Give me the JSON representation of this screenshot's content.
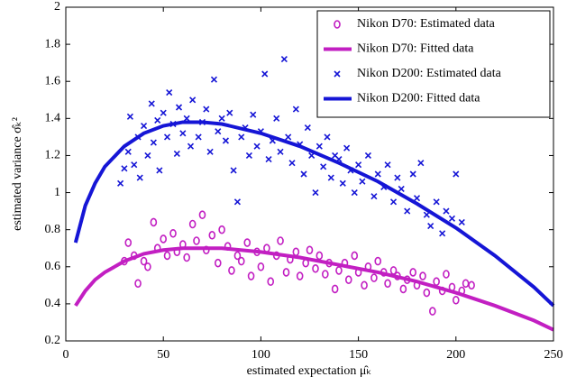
{
  "chart_data": {
    "type": "scatter",
    "x_label": "estimated expectation μ̂ₖ",
    "y_label": "estimated variance σ̂ₖ²",
    "xlim": [
      0,
      250
    ],
    "xticks": [
      0,
      50,
      100,
      150,
      200,
      250
    ],
    "ylim": [
      0.2,
      2
    ],
    "yticks": [
      0.2,
      0.4,
      0.6,
      0.8,
      1,
      1.2,
      1.4,
      1.6,
      1.8,
      2
    ],
    "grid": false,
    "legend": "top-right",
    "series": [
      {
        "name": "Nikon D70: Estimated data",
        "color": "#c21fc2",
        "mode": "markers",
        "marker": "o",
        "x": [
          30,
          32,
          35,
          37,
          40,
          42,
          45,
          47,
          50,
          52,
          55,
          57,
          60,
          62,
          65,
          67,
          70,
          72,
          75,
          78,
          80,
          83,
          85,
          88,
          90,
          93,
          95,
          98,
          100,
          103,
          105,
          108,
          110,
          113,
          115,
          118,
          120,
          123,
          125,
          128,
          130,
          133,
          135,
          138,
          140,
          143,
          145,
          148,
          150,
          153,
          155,
          158,
          160,
          163,
          165,
          168,
          170,
          173,
          175,
          178,
          180,
          183,
          185,
          188,
          190,
          193,
          195,
          198,
          200,
          203,
          205,
          208
        ],
        "values": [
          0.63,
          0.73,
          0.66,
          0.51,
          0.63,
          0.6,
          0.84,
          0.7,
          0.75,
          0.66,
          0.78,
          0.68,
          0.72,
          0.65,
          0.83,
          0.74,
          0.88,
          0.69,
          0.77,
          0.62,
          0.8,
          0.71,
          0.58,
          0.66,
          0.63,
          0.73,
          0.55,
          0.68,
          0.6,
          0.7,
          0.52,
          0.66,
          0.74,
          0.57,
          0.64,
          0.68,
          0.55,
          0.62,
          0.69,
          0.59,
          0.66,
          0.56,
          0.62,
          0.48,
          0.58,
          0.62,
          0.53,
          0.66,
          0.57,
          0.5,
          0.6,
          0.54,
          0.63,
          0.57,
          0.51,
          0.58,
          0.55,
          0.48,
          0.53,
          0.57,
          0.5,
          0.55,
          0.46,
          0.36,
          0.52,
          0.47,
          0.56,
          0.49,
          0.42,
          0.47,
          0.51,
          0.5
        ]
      },
      {
        "name": "Nikon D70: Fitted data",
        "color": "#c21fc2",
        "mode": "line",
        "x": [
          5,
          10,
          15,
          20,
          30,
          40,
          50,
          60,
          70,
          80,
          100,
          120,
          140,
          160,
          180,
          200,
          220,
          240,
          250
        ],
        "values": [
          0.39,
          0.47,
          0.53,
          0.57,
          0.63,
          0.67,
          0.69,
          0.7,
          0.7,
          0.7,
          0.68,
          0.65,
          0.61,
          0.57,
          0.52,
          0.46,
          0.39,
          0.31,
          0.26
        ]
      },
      {
        "name": "Nikon D200: Estimated data",
        "color": "#1515d6",
        "mode": "markers",
        "marker": "x",
        "x": [
          28,
          30,
          32,
          33,
          35,
          37,
          38,
          40,
          42,
          44,
          45,
          47,
          48,
          50,
          52,
          53,
          55,
          57,
          58,
          60,
          62,
          64,
          65,
          68,
          70,
          72,
          74,
          76,
          78,
          80,
          82,
          84,
          86,
          88,
          90,
          92,
          94,
          96,
          98,
          100,
          102,
          104,
          106,
          108,
          110,
          112,
          114,
          116,
          118,
          120,
          122,
          124,
          126,
          128,
          130,
          132,
          134,
          136,
          138,
          140,
          142,
          144,
          146,
          148,
          150,
          152,
          155,
          158,
          160,
          163,
          165,
          168,
          170,
          172,
          175,
          178,
          180,
          182,
          185,
          187,
          190,
          193,
          195,
          198,
          200,
          203
        ],
        "values": [
          1.05,
          1.13,
          1.22,
          1.41,
          1.15,
          1.3,
          1.08,
          1.36,
          1.2,
          1.48,
          1.27,
          1.39,
          1.12,
          1.43,
          1.3,
          1.54,
          1.37,
          1.21,
          1.46,
          1.32,
          1.4,
          1.25,
          1.5,
          1.3,
          1.38,
          1.45,
          1.22,
          1.61,
          1.33,
          1.4,
          1.28,
          1.43,
          1.12,
          0.95,
          1.3,
          1.35,
          1.2,
          1.42,
          1.25,
          1.33,
          1.64,
          1.18,
          1.28,
          1.4,
          1.22,
          1.72,
          1.3,
          1.16,
          1.45,
          1.26,
          1.1,
          1.35,
          1.2,
          1.0,
          1.25,
          1.14,
          1.3,
          1.08,
          1.2,
          1.18,
          1.05,
          1.24,
          1.12,
          1.0,
          1.15,
          1.06,
          1.2,
          0.98,
          1.1,
          1.03,
          1.15,
          0.95,
          1.08,
          1.02,
          0.9,
          1.1,
          0.97,
          1.16,
          0.88,
          0.82,
          0.95,
          0.78,
          0.9,
          0.86,
          1.1,
          0.84
        ]
      },
      {
        "name": "Nikon D200: Fitted data",
        "color": "#1515d6",
        "mode": "line",
        "x": [
          5,
          10,
          15,
          20,
          30,
          40,
          50,
          60,
          70,
          80,
          100,
          120,
          140,
          160,
          180,
          200,
          220,
          240,
          250
        ],
        "values": [
          0.73,
          0.93,
          1.05,
          1.14,
          1.25,
          1.32,
          1.36,
          1.38,
          1.38,
          1.37,
          1.32,
          1.25,
          1.16,
          1.06,
          0.94,
          0.81,
          0.66,
          0.49,
          0.39
        ]
      }
    ]
  }
}
